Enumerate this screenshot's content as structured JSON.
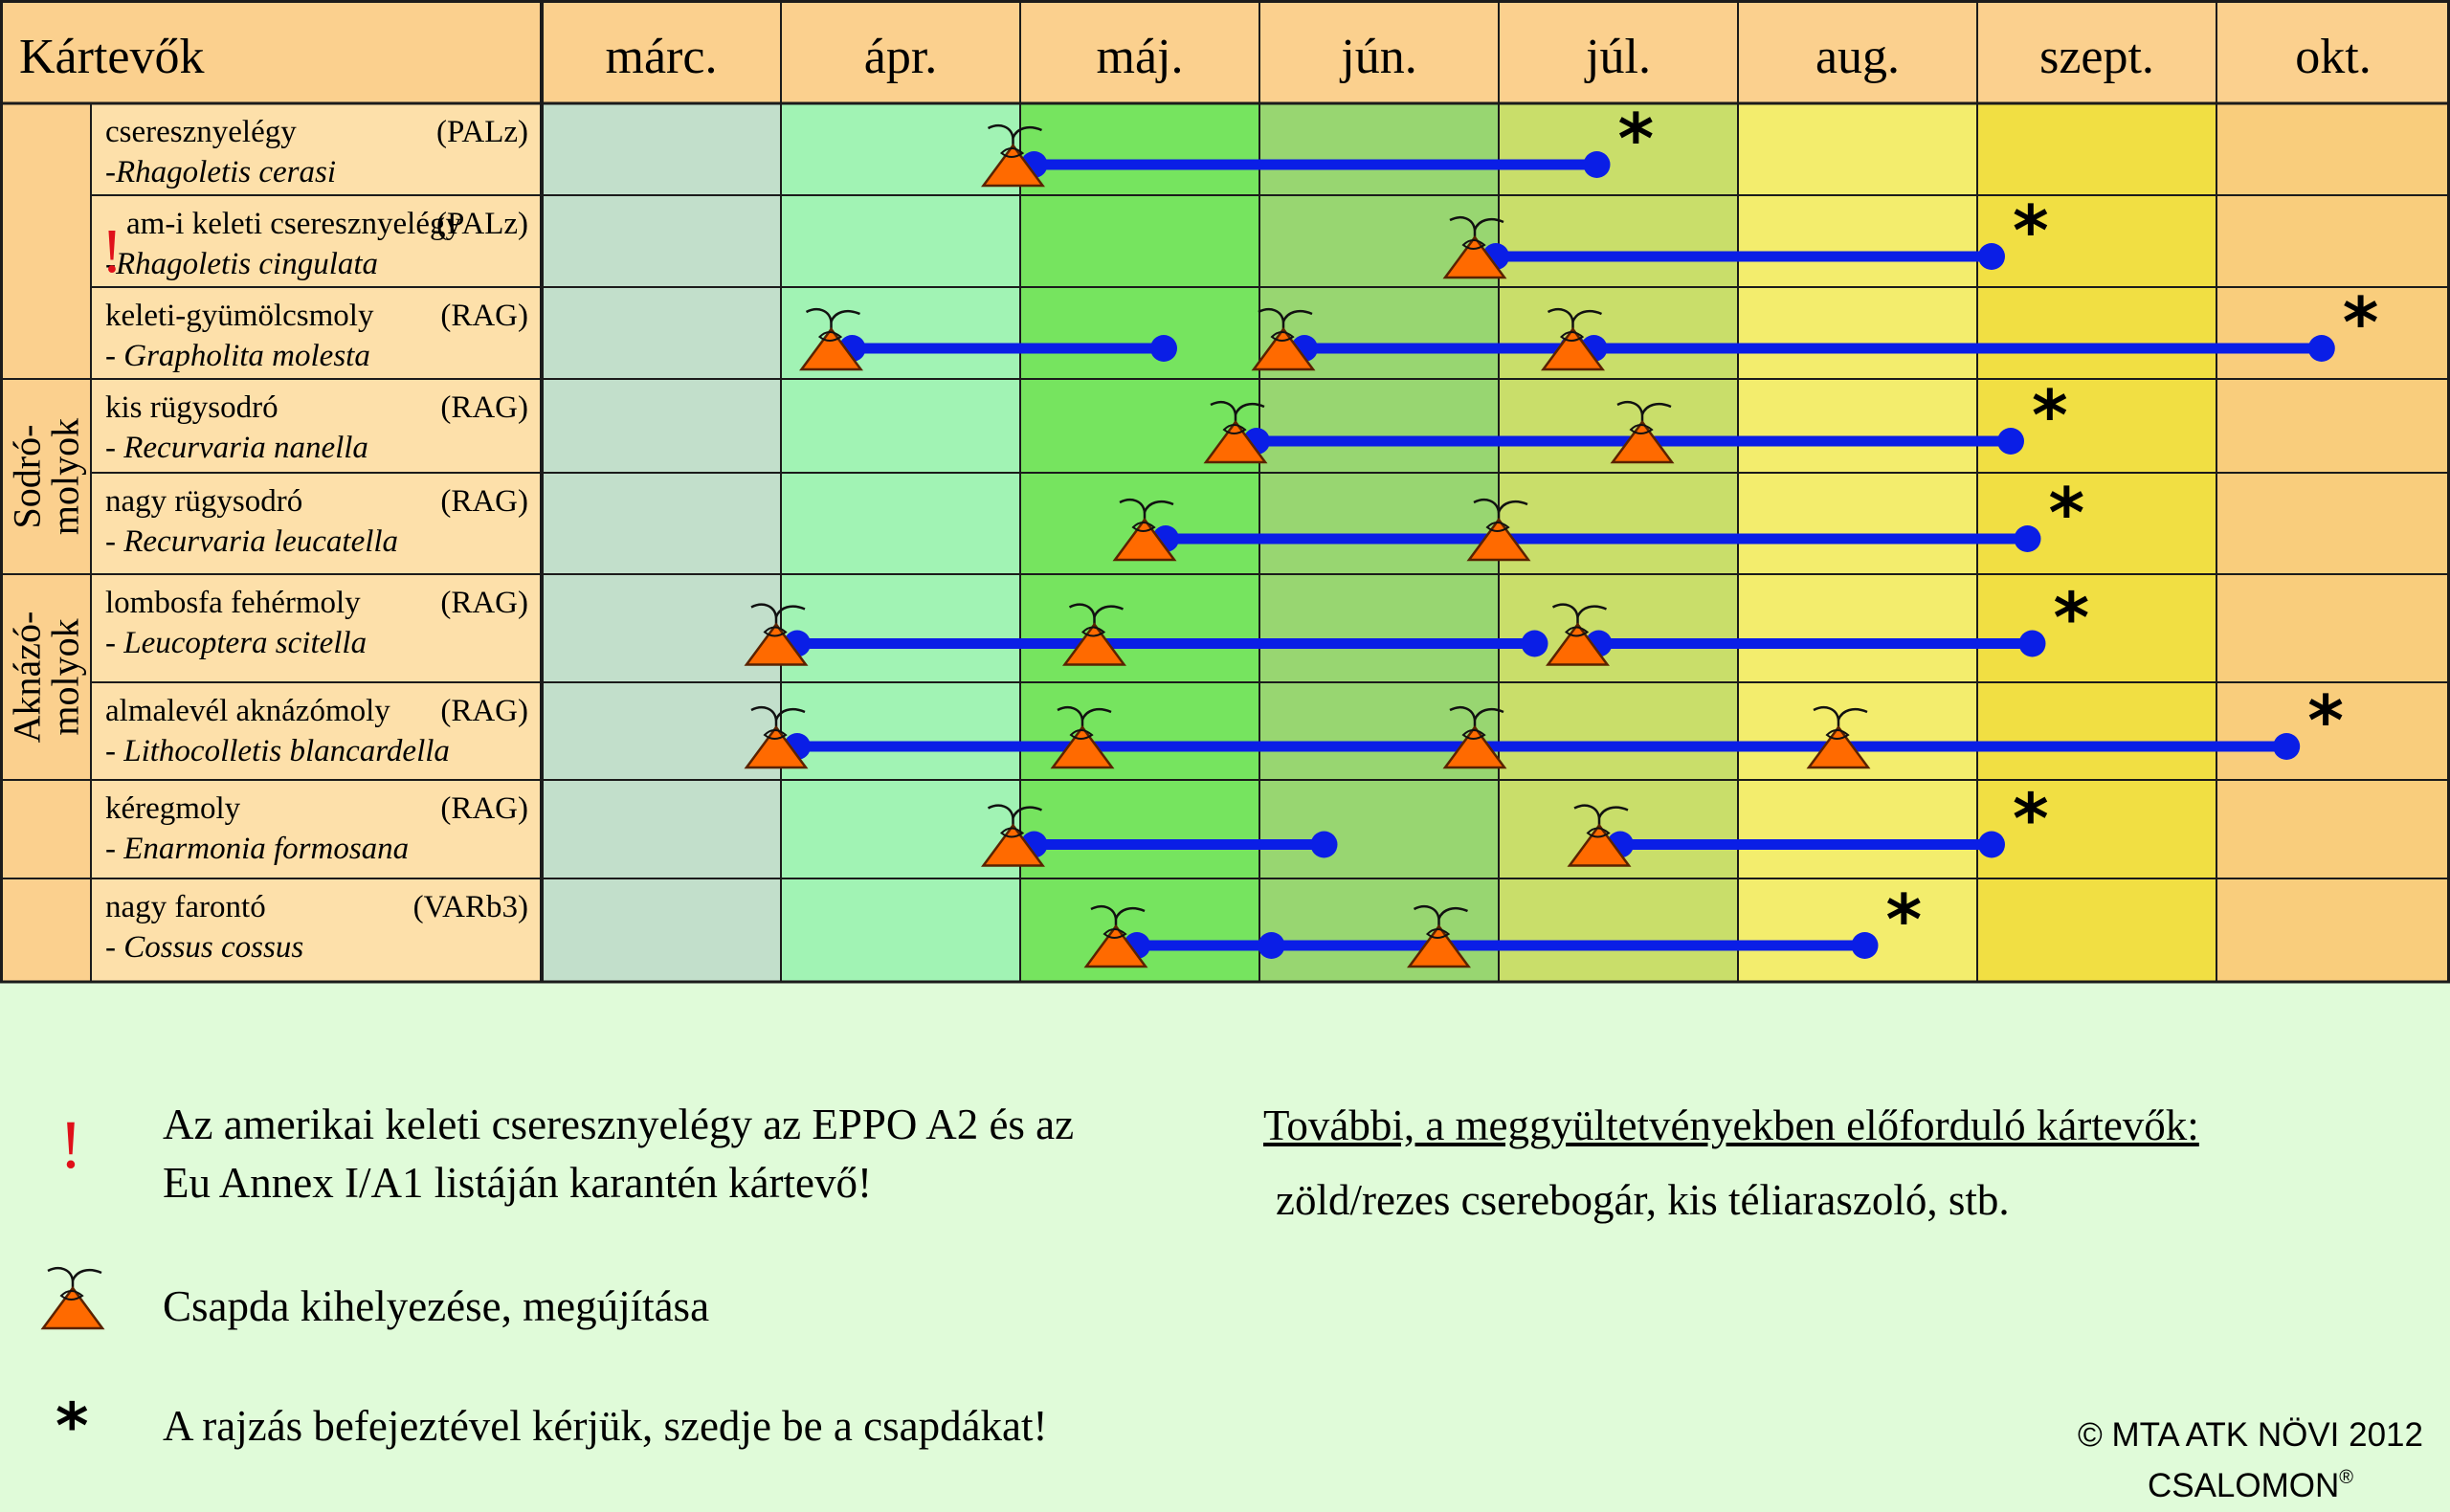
{
  "chart_data": {
    "type": "gantt",
    "header": {
      "row_label": "Kártevők",
      "months": [
        "márc.",
        "ápr.",
        "máj.",
        "jún.",
        "júl.",
        "aug.",
        "szept.",
        "okt."
      ]
    },
    "groups": [
      {
        "label": "",
        "rows": [
          0,
          1,
          2
        ]
      },
      {
        "label": "Sodró-\nmolyok",
        "rows": [
          3,
          4
        ]
      },
      {
        "label": "Aknázó-\nmolyok",
        "rows": [
          5,
          6
        ]
      },
      {
        "label": "",
        "rows": [
          7
        ]
      },
      {
        "label": "",
        "rows": [
          8
        ]
      }
    ],
    "pests": [
      {
        "name": "cseresznyelégy",
        "code": "(PALz)",
        "latin": "-Rhagoletis cerasi",
        "quarantine": false,
        "traps": [
          4.97
        ],
        "segments": [
          [
            4.97,
            7.41
          ]
        ],
        "end": 7.41
      },
      {
        "name": "am-i keleti cseresznyelégy",
        "code": "(PALz)",
        "latin": "-Rhagoletis cingulata",
        "quarantine": true,
        "traps": [
          6.9
        ],
        "segments": [
          [
            6.9,
            9.06
          ]
        ],
        "end": 9.06
      },
      {
        "name": "keleti-gyümölcsmoly",
        "code": "(RAG)",
        "latin": "- Grapholita molesta",
        "quarantine": false,
        "traps": [
          4.21,
          6.1,
          7.31
        ],
        "segments": [
          [
            4.21,
            5.6
          ],
          [
            6.1,
            7.31
          ],
          [
            7.31,
            10.45
          ]
        ],
        "end": 10.45
      },
      {
        "name": "kis rügysodró",
        "code": "(RAG)",
        "latin": "- Recurvaria nanella",
        "quarantine": false,
        "traps": [
          5.9,
          7.6
        ],
        "segments": [
          [
            5.9,
            9.14
          ]
        ],
        "end": 9.14
      },
      {
        "name": "nagy rügysodró",
        "code": "(RAG)",
        "latin": "- Recurvaria leucatella",
        "quarantine": false,
        "traps": [
          5.52,
          7.0
        ],
        "segments": [
          [
            5.52,
            9.21
          ]
        ],
        "end": 9.21
      },
      {
        "name": "lombosfa fehérmoly",
        "code": "(RAG)",
        "latin": "- Leucoptera scitella",
        "quarantine": false,
        "traps": [
          3.98,
          5.31,
          7.33
        ],
        "segments": [
          [
            3.98,
            7.15
          ],
          [
            7.33,
            9.23
          ]
        ],
        "end": 9.23
      },
      {
        "name": "almalevél aknázómoly",
        "code": "(RAG)",
        "latin": "- Lithocolletis blancardella",
        "quarantine": false,
        "traps": [
          3.98,
          5.26,
          6.9,
          8.42
        ],
        "segments": [
          [
            3.98,
            10.3
          ]
        ],
        "end": 10.3
      },
      {
        "name": "kéregmoly",
        "code": "(RAG)",
        "latin": "- Enarmonia formosana",
        "quarantine": false,
        "traps": [
          4.97,
          7.42
        ],
        "segments": [
          [
            4.97,
            6.27
          ],
          [
            7.42,
            9.06
          ]
        ],
        "end": 9.06
      },
      {
        "name": "nagy farontó",
        "code": "(VARb3)",
        "latin": "- Cossus cossus",
        "quarantine": false,
        "traps": [
          5.4,
          6.75
        ],
        "segments": [
          [
            5.4,
            8.53
          ]
        ],
        "markers": [
          6.05
        ],
        "end": 8.53
      }
    ]
  },
  "legend": {
    "quarantine_symbol": "!",
    "quarantine_text": [
      "Az amerikai keleti cseresznyelégy az EPPO A2 és az",
      "Eu Annex I/A1 listáján karantén kártevő!"
    ],
    "trap_text": "Csapda kihelyezése, megújítása",
    "end_symbol": "*",
    "end_text": "A rajzás befejeztével kérjük, szedje be a csapdákat!",
    "other_title": "További, a meggyültetvényekben előforduló kártevők:",
    "other_text": "zöld/rezes cserebogár, kis téliaraszoló, stb."
  },
  "copyright": {
    "line1": "© MTA ATK NÖVI 2012",
    "line2": "CSALOMON",
    "mark": "®"
  },
  "colors": {
    "header_bg": "#fbd08e",
    "row_bg": "#fde0aa",
    "month_bg": [
      "#c2dfcb",
      "#a1f3b4",
      "#76e45f",
      "#98d671",
      "#c9de6a",
      "#f3ed6d",
      "#f1df43",
      "#f9cd7c"
    ],
    "line": "#0a1ee6",
    "trap": "#ff6a00",
    "quarantine": "#e0101a"
  }
}
